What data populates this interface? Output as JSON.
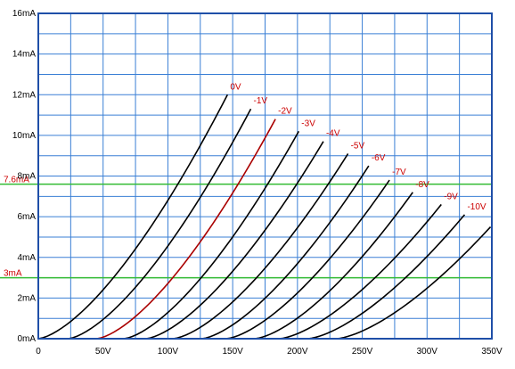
{
  "chart_data": {
    "type": "line",
    "title": "",
    "xlabel": "",
    "ylabel": "",
    "xlim": [
      0,
      350
    ],
    "ylim": [
      0,
      16
    ],
    "grid": true,
    "x_ticks": [
      {
        "value": 0,
        "label": "0"
      },
      {
        "value": 50,
        "label": "50V"
      },
      {
        "value": 100,
        "label": "100V"
      },
      {
        "value": 150,
        "label": "150V"
      },
      {
        "value": 200,
        "label": "200V"
      },
      {
        "value": 250,
        "label": "250V"
      },
      {
        "value": 300,
        "label": "300V"
      },
      {
        "value": 350,
        "label": "350V"
      }
    ],
    "y_ticks": [
      {
        "value": 0,
        "label": "0mA"
      },
      {
        "value": 2,
        "label": "2mA"
      },
      {
        "value": 4,
        "label": "4mA"
      },
      {
        "value": 6,
        "label": "6mA"
      },
      {
        "value": 8,
        "label": "8mA"
      },
      {
        "value": 10,
        "label": "10mA"
      },
      {
        "value": 12,
        "label": "12mA"
      },
      {
        "value": 14,
        "label": "14mA"
      },
      {
        "value": 16,
        "label": "16mA"
      }
    ],
    "reference_lines": [
      {
        "axis": "y",
        "value": 7.6,
        "label": "7.6mA"
      },
      {
        "axis": "y",
        "value": 3,
        "label": "3mA"
      }
    ],
    "series": [
      {
        "name": "0V",
        "x_start": 0,
        "x_end": 146,
        "y_end": 12.0,
        "highlight": false
      },
      {
        "name": "-1V",
        "x_start": 23,
        "x_end": 164,
        "y_end": 11.3,
        "highlight": false
      },
      {
        "name": "-2V",
        "x_start": 45,
        "x_end": 183,
        "y_end": 10.8,
        "highlight": true
      },
      {
        "name": "-3V",
        "x_start": 66,
        "x_end": 201,
        "y_end": 10.2,
        "highlight": false
      },
      {
        "name": "-4V",
        "x_start": 83,
        "x_end": 220,
        "y_end": 9.7,
        "highlight": false
      },
      {
        "name": "-5V",
        "x_start": 104,
        "x_end": 239,
        "y_end": 9.1,
        "highlight": false
      },
      {
        "name": "-6V",
        "x_start": 126,
        "x_end": 255,
        "y_end": 8.5,
        "highlight": false
      },
      {
        "name": "-7V",
        "x_start": 145,
        "x_end": 271,
        "y_end": 7.8,
        "highlight": false
      },
      {
        "name": "-8V",
        "x_start": 167,
        "x_end": 289,
        "y_end": 7.2,
        "highlight": false
      },
      {
        "name": "-9V",
        "x_start": 186,
        "x_end": 311,
        "y_end": 6.6,
        "highlight": false
      },
      {
        "name": "-10V",
        "x_start": 208,
        "x_end": 329,
        "y_end": 6.1,
        "highlight": false
      },
      {
        "name": "",
        "x_start": 230,
        "x_end": 349,
        "y_end": 5.5,
        "highlight": false
      }
    ],
    "colors": {
      "grid": "#3a7fd5",
      "frame": "#1f4fa8",
      "curve": "#000000",
      "highlight_curve": "#aa0000",
      "reference_line": "#33bb33",
      "label": "#cc0000"
    }
  }
}
